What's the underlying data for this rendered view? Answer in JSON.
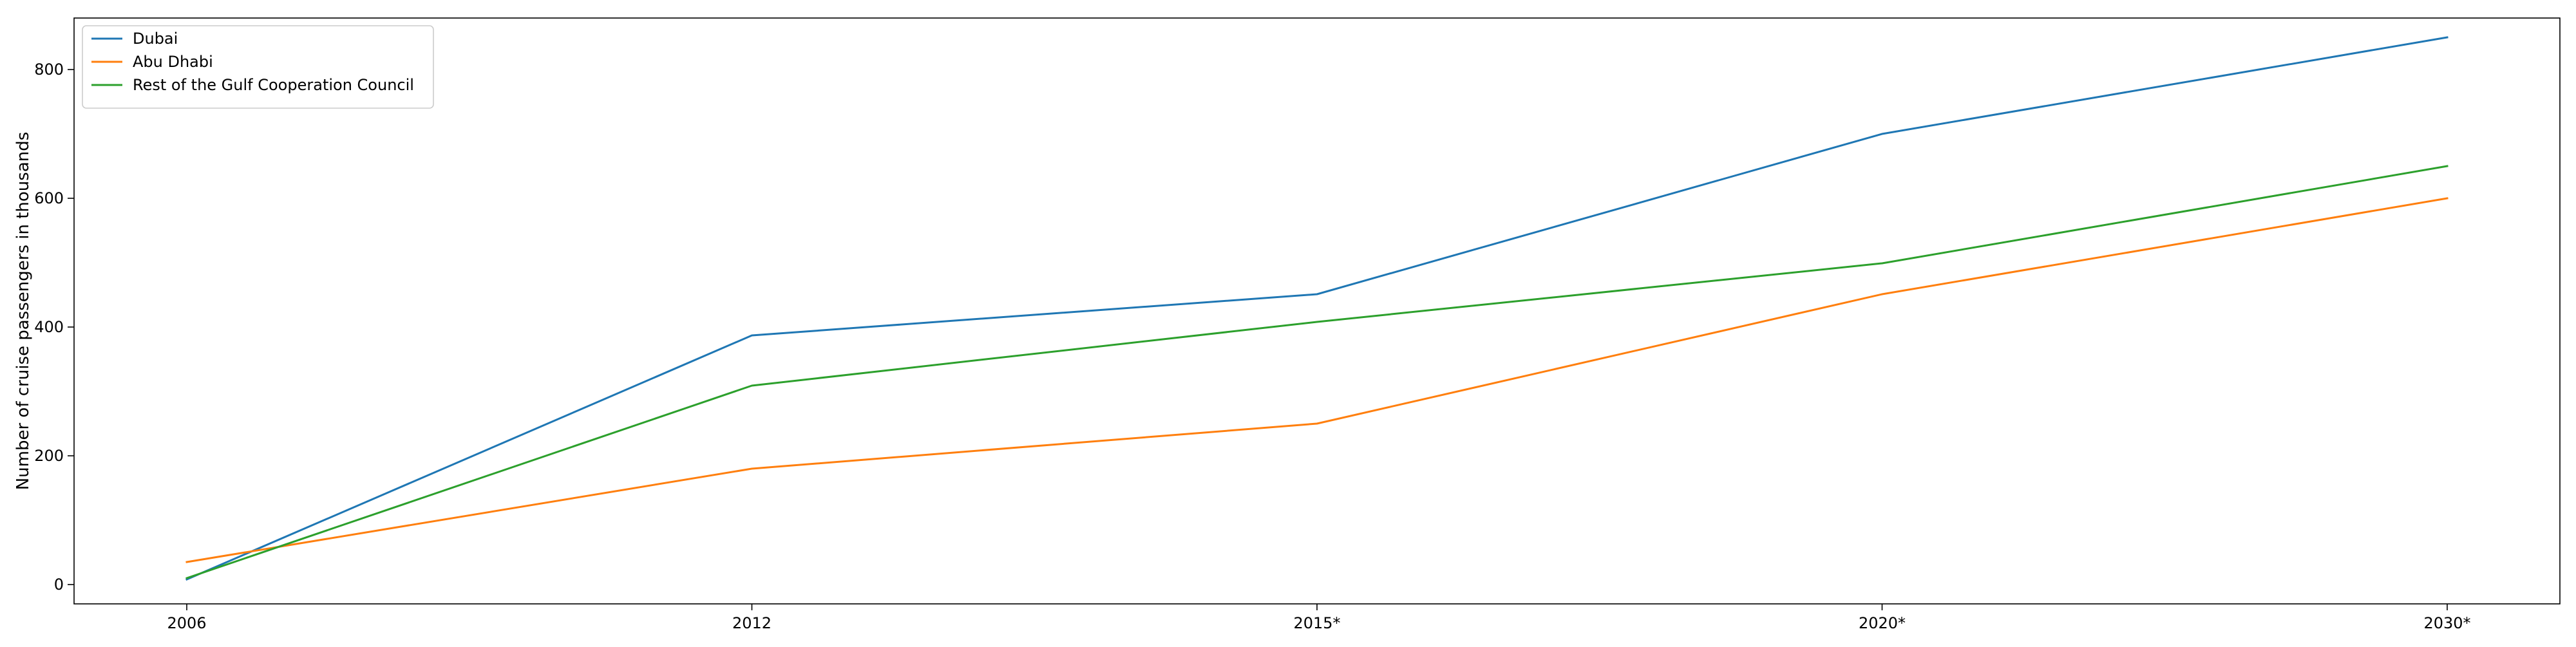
{
  "chart_data": {
    "type": "line",
    "title": "",
    "xlabel": "",
    "ylabel": "Number of cruise passengers in thousands",
    "x": [
      "2006",
      "2012",
      "2015*",
      "2020*",
      "2030*"
    ],
    "ylim": [
      -30,
      880
    ],
    "yticks": [
      0,
      200,
      400,
      600,
      800
    ],
    "grid": false,
    "legend_position": "top-left",
    "series": [
      {
        "name": "Dubai",
        "color": "#1f77b4",
        "values": [
          8,
          387,
          451,
          700,
          850
        ]
      },
      {
        "name": "Abu Dhabi",
        "color": "#ff7f0e",
        "values": [
          35,
          180,
          250,
          451,
          600
        ]
      },
      {
        "name": "Rest of the Gulf Cooperation Council",
        "color": "#2ca02c",
        "values": [
          10,
          309,
          408,
          499,
          650
        ]
      }
    ]
  }
}
